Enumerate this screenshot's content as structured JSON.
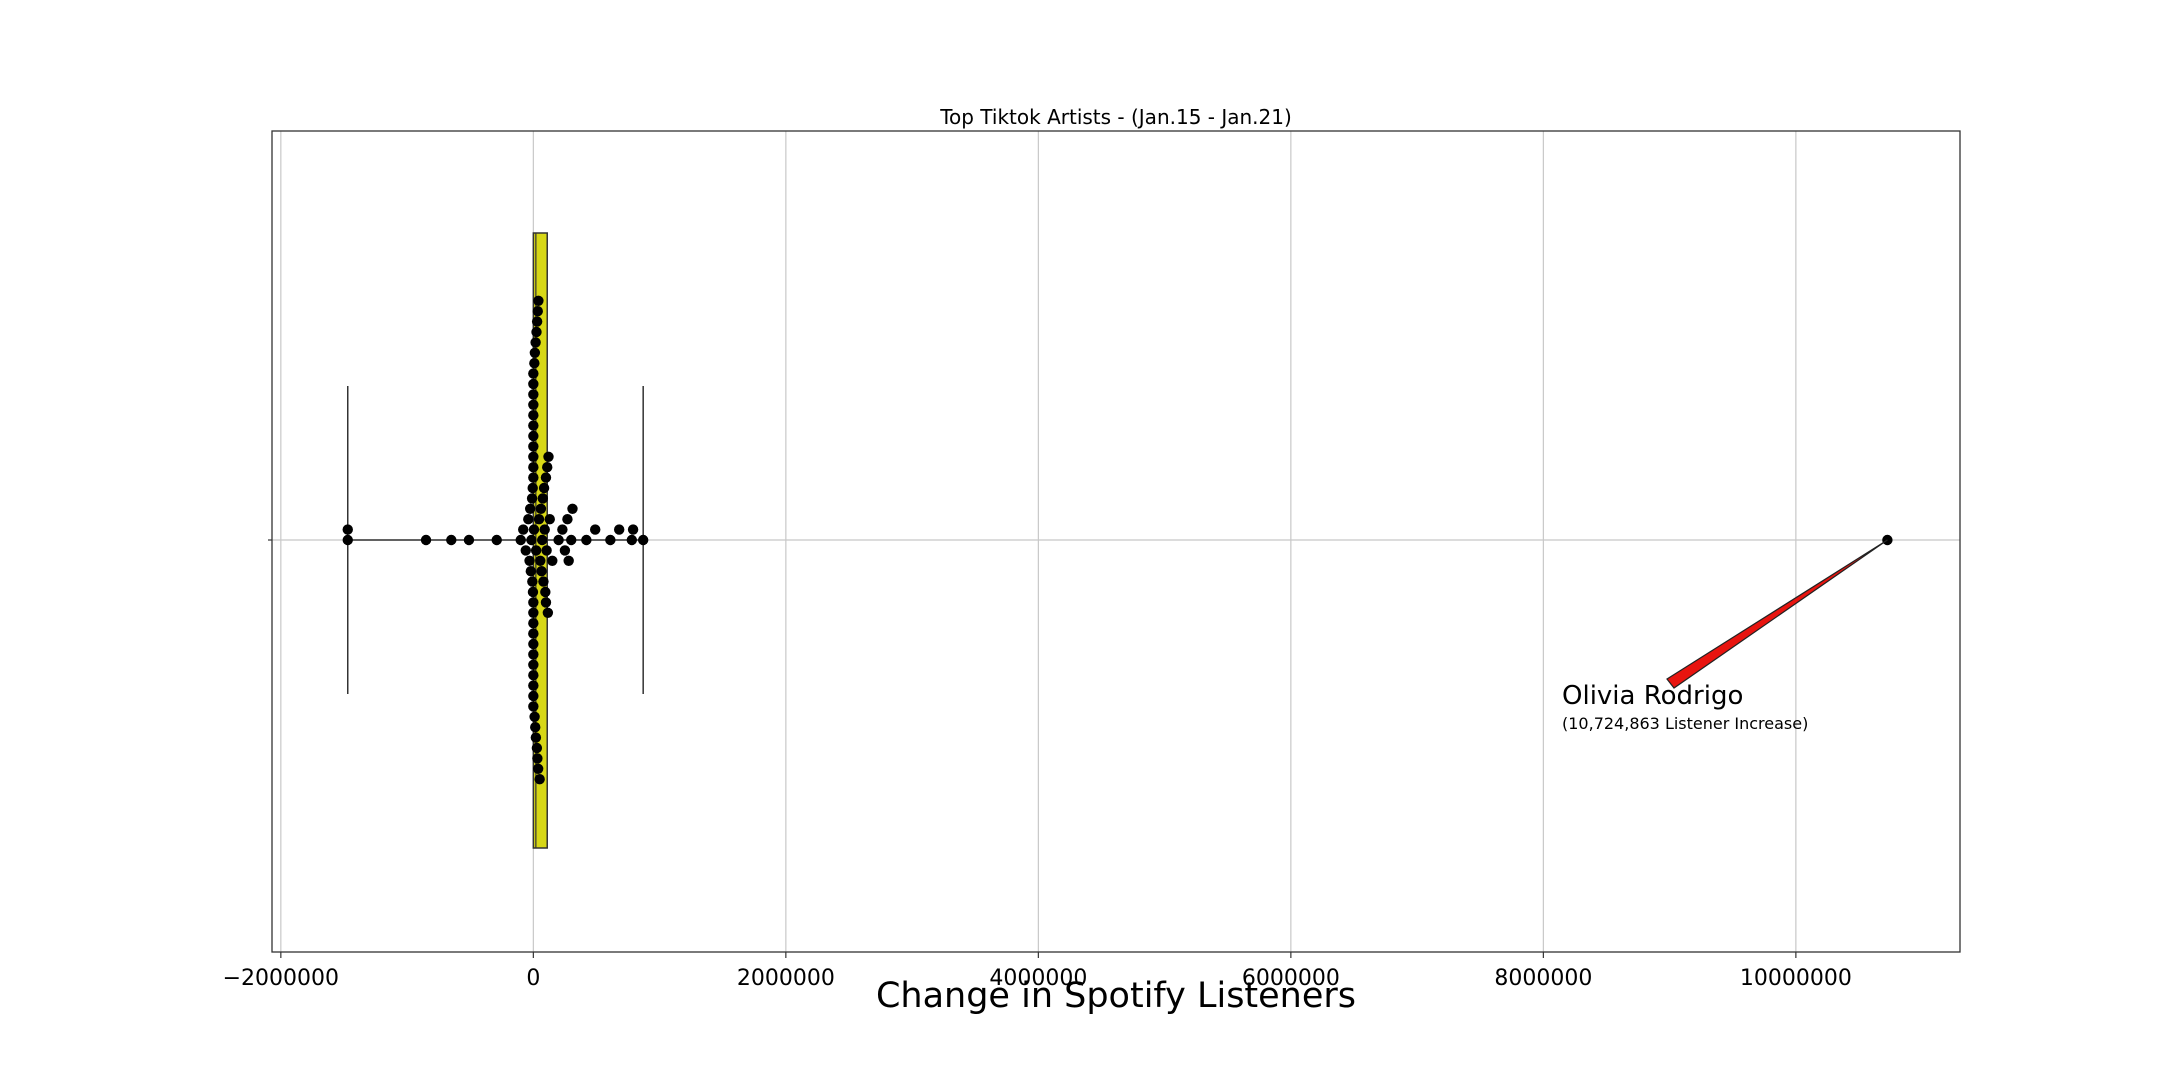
{
  "chart_data": {
    "type": "scatter",
    "title": "Top Tiktok Artists - (Jan.15 - Jan.21)",
    "xlabel": "Change in Spotify Listeners",
    "ylabel": "",
    "xlim": [
      -2070000,
      11300000
    ],
    "xticks": [
      -2000000,
      0,
      2000000,
      4000000,
      6000000,
      8000000,
      10000000
    ],
    "xtick_labels": [
      "−2000000",
      "0",
      "2000000",
      "4000000",
      "6000000",
      "8000000",
      "10000000"
    ],
    "grid": true,
    "box": {
      "fill": "#d7d716",
      "q1": 0,
      "q3": 110000,
      "median": 20000,
      "whisker_low": -1470000,
      "whisker_high": 870000
    },
    "swarm_points": [
      -1470000,
      -1470000,
      -850000,
      -650000,
      -510000,
      -290000,
      -100000,
      -80000,
      -60000,
      -40000,
      -30000,
      -25000,
      -20000,
      -15000,
      -10000,
      -8000,
      -5000,
      -3000,
      0,
      0,
      0,
      0,
      0,
      0,
      0,
      0,
      0,
      0,
      0,
      0,
      0,
      0,
      0,
      0,
      0,
      0,
      0,
      0,
      0,
      0,
      5000,
      8000,
      10000,
      12000,
      15000,
      18000,
      20000,
      22000,
      25000,
      28000,
      30000,
      32000,
      35000,
      38000,
      40000,
      45000,
      50000,
      55000,
      60000,
      65000,
      70000,
      75000,
      80000,
      85000,
      90000,
      95000,
      100000,
      100000,
      105000,
      110000,
      115000,
      120000,
      130000,
      150000,
      200000,
      230000,
      250000,
      270000,
      280000,
      300000,
      310000,
      420000,
      490000,
      610000,
      680000,
      780000,
      790000,
      870000
    ],
    "outlier": {
      "x": 10724863
    },
    "annotation": {
      "name": "Olivia Rodrigo",
      "detail": "(10,724,863 Listener Increase)",
      "arrow_color": "#e8140f"
    }
  }
}
